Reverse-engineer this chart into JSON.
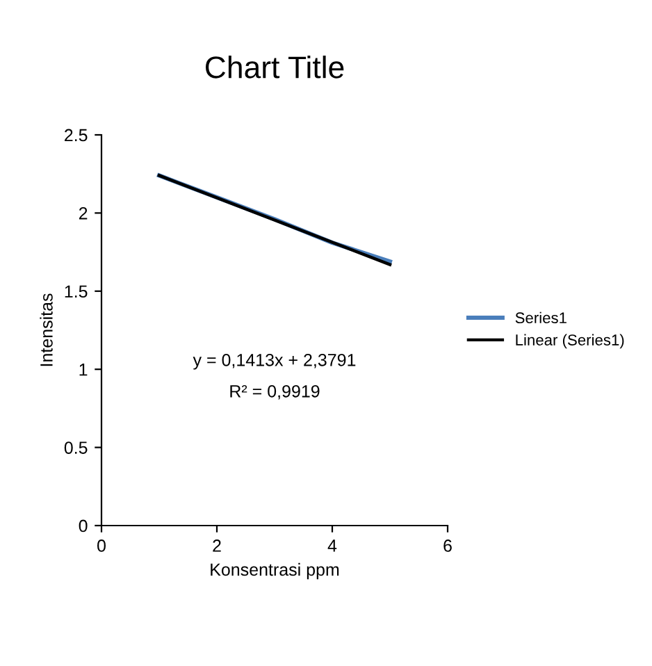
{
  "chart_data": {
    "type": "line",
    "title": "Chart Title",
    "xlabel": "Konsentrasi ppm",
    "ylabel": "Intensitas",
    "x": [
      1,
      2,
      3,
      4,
      5
    ],
    "series": [
      {
        "name": "Series1",
        "color": "#4a7ebb",
        "values": [
          2.24,
          2.1,
          1.96,
          1.81,
          1.69
        ]
      },
      {
        "name": "Linear (Series1)",
        "color": "#000000",
        "x": [
          1,
          5
        ],
        "values": [
          2.24,
          1.67
        ]
      }
    ],
    "annotations": [
      "y = 0,1413x + 2,3791",
      "R² = 0,9919"
    ],
    "xlim": [
      0,
      6
    ],
    "xticks": [
      0,
      2,
      4,
      6
    ],
    "ylim": [
      0,
      2.5
    ],
    "yticks": [
      0,
      0.5,
      1,
      1.5,
      2,
      2.5
    ],
    "grid": false,
    "legend": "right",
    "marker": "none"
  }
}
